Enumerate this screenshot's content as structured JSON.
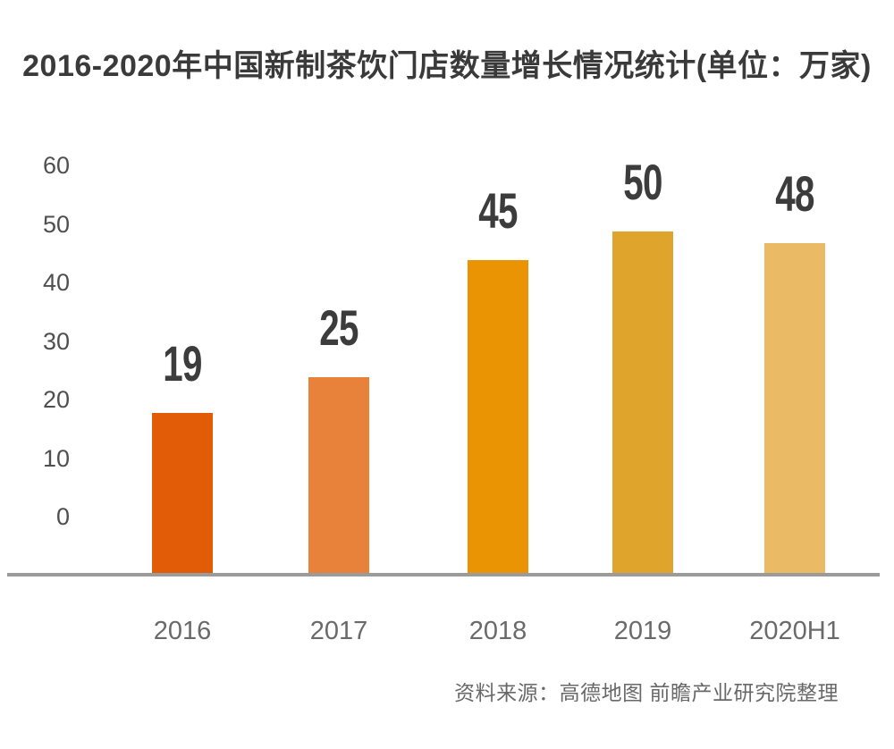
{
  "title": "2016-2020年中国新制茶饮门店数量增长情况统计(单位：万家)",
  "source": "资料来源：高德地图 前瞻产业研究院整理",
  "chart_data": {
    "type": "bar",
    "title": "2016-2020年中国新制茶饮门店数量增长情况统计",
    "unit_label": "万家",
    "categories": [
      "2016",
      "2017",
      "2018",
      "2019",
      "2020H1"
    ],
    "values": [
      19,
      25,
      45,
      50,
      48
    ],
    "bar_colors": [
      "#e25c07",
      "#e8813a",
      "#ea9403",
      "#dfa42b",
      "#eabb64"
    ],
    "value_label_color": "#3c3c3c",
    "xlabel": "",
    "ylabel": "",
    "ylim": [
      0,
      60
    ],
    "yticks": [
      0,
      10,
      20,
      30,
      40,
      50,
      60
    ],
    "grid": false,
    "legend": false,
    "axis_line_color": "#9b9b9b",
    "tick_label_color": "#4f4f4f",
    "x_tick_label_color": "#6a6a6a"
  }
}
